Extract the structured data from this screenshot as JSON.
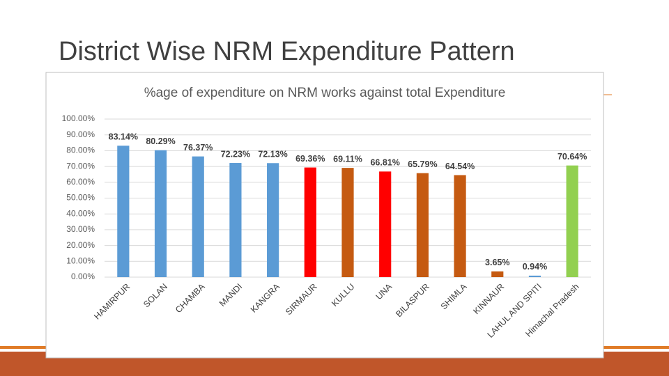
{
  "slide": {
    "title": "District Wise NRM Expenditure Pattern"
  },
  "chart_data": {
    "type": "bar",
    "title": "%age of expenditure on NRM works against total Expenditure",
    "categories": [
      "HAMIRPUR",
      "SOLAN",
      "CHAMBA",
      "MANDI",
      "KANGRA",
      "SIRMAUR",
      "KULLU",
      "UNA",
      "BILASPUR",
      "SHIMLA",
      "KINNAUR",
      "LAHUL AND SPITI",
      "Himachal Pradesh"
    ],
    "values": [
      83.14,
      80.29,
      76.37,
      72.23,
      72.13,
      69.36,
      69.11,
      66.81,
      65.79,
      64.54,
      3.65,
      0.94,
      70.64
    ],
    "value_labels": [
      "83.14%",
      "80.29%",
      "76.37%",
      "72.23%",
      "72.13%",
      "69.36%",
      "69.11%",
      "66.81%",
      "65.79%",
      "64.54%",
      "3.65%",
      "0.94%",
      "70.64%"
    ],
    "colors": [
      "#5b9bd5",
      "#5b9bd5",
      "#5b9bd5",
      "#5b9bd5",
      "#5b9bd5",
      "#ff0000",
      "#c55a11",
      "#ff0000",
      "#c55a11",
      "#c55a11",
      "#c55a11",
      "#5b9bd5",
      "#92d050"
    ],
    "ylim": [
      0,
      100
    ],
    "yticks": [
      {
        "value": 0,
        "label": "0.00%"
      },
      {
        "value": 10,
        "label": "10.00%"
      },
      {
        "value": 20,
        "label": "20.00%"
      },
      {
        "value": 30,
        "label": "30.00%"
      },
      {
        "value": 40,
        "label": "40.00%"
      },
      {
        "value": 50,
        "label": "50.00%"
      },
      {
        "value": 60,
        "label": "60.00%"
      },
      {
        "value": 70,
        "label": "70.00%"
      },
      {
        "value": 80,
        "label": "80.00%"
      },
      {
        "value": 90,
        "label": "90.00%"
      },
      {
        "value": 100,
        "label": "100.00%"
      }
    ],
    "grid": true
  }
}
